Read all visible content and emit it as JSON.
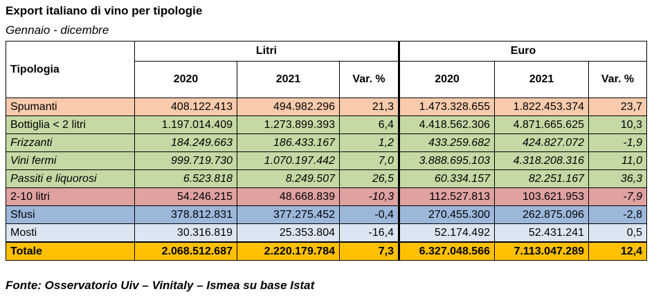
{
  "title": "Export italiano di vino per tipologie",
  "subtitle": "Gennaio - dicembre",
  "header": {
    "tipologia": "Tipologia",
    "group_litri": "Litri",
    "group_euro": "Euro",
    "cols": [
      "2020",
      "2021",
      "Var. %",
      "2020",
      "2021",
      "Var. %"
    ]
  },
  "rows": [
    {
      "label": "Spumanti",
      "values": [
        "408.122.413",
        "494.982.296",
        "21,3",
        "1.473.328.655",
        "1.822.453.374",
        "23,7"
      ],
      "color": "#f8cbad",
      "style": "normal"
    },
    {
      "label": "Bottiglia < 2 litri",
      "values": [
        "1.197.014.409",
        "1.273.899.393",
        "6,4",
        "4.418.562.306",
        "4.871.665.625",
        "10,3"
      ],
      "color": "#c5d9a4",
      "style": "normal"
    },
    {
      "label": "Frizzanti",
      "values": [
        "184.249.663",
        "186.433.167",
        "1,2",
        "433.259.682",
        "424.827.072",
        "-1,9"
      ],
      "color": "#c5d9a4",
      "style": "italic"
    },
    {
      "label": "Vini fermi",
      "values": [
        "999.719.730",
        "1.070.197.442",
        "7,0",
        "3.888.695.103",
        "4.318.208.316",
        "11,0"
      ],
      "color": "#c5d9a4",
      "style": "italic"
    },
    {
      "label": "Passiti e liquorosi",
      "values": [
        "6.523.818",
        "8.249.507",
        "26,5",
        "60.334.157",
        "82.251.167",
        "36,3"
      ],
      "color": "#c5d9a4",
      "style": "italic"
    },
    {
      "label": "2-10 litri",
      "values": [
        "54.246.215",
        "48.668.839",
        "-10,3",
        "112.527.813",
        "103.621.953",
        "-7,9"
      ],
      "color": "#e0a1a1",
      "style": "normal",
      "italic_var": true
    },
    {
      "label": "Sfusi",
      "values": [
        "378.812.831",
        "377.275.452",
        "-0,4",
        "270.455.300",
        "262.875.096",
        "-2,8"
      ],
      "color": "#9db7db",
      "style": "normal"
    },
    {
      "label": "Mosti",
      "values": [
        "30.316.819",
        "25.353.804",
        "-16,4",
        "52.174.492",
        "52.431.241",
        "0,5"
      ],
      "color": "#dce6f2",
      "style": "normal"
    },
    {
      "label": "Totale",
      "values": [
        "2.068.512.687",
        "2.220.179.784",
        "7,3",
        "6.327.048.566",
        "7.113.047.289",
        "12,4"
      ],
      "color": "#ffc000",
      "style": "bold"
    }
  ],
  "source": "Fonte: Osservatorio Uiv – Vinitaly – Ismea su base Istat"
}
